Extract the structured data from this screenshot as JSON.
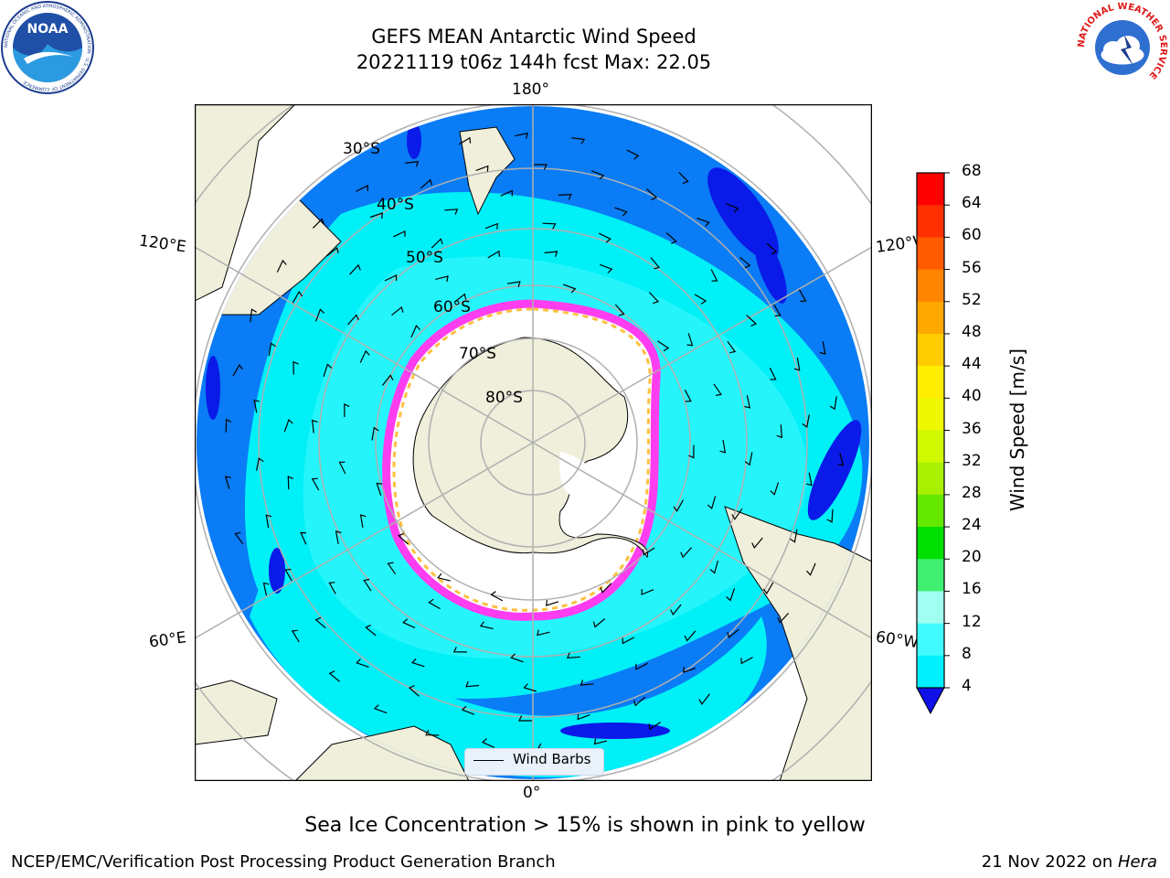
{
  "title": {
    "line1": "GEFS MEAN Antarctic Wind Speed",
    "line2": "20221119 t06z 144h fcst   Max: 22.05"
  },
  "logos": {
    "left": {
      "name": "noaa-logo",
      "text": "NOAA",
      "ring_text": "NATIONAL OCEANIC AND ATMOSPHERIC ADMINISTRATION · U.S. DEPARTMENT OF COMMERCE"
    },
    "right": {
      "name": "nws-logo",
      "ring_text": "NATIONAL WEATHER SERVICE"
    }
  },
  "map": {
    "projection": "south-polar-stereographic",
    "longitude_labels": {
      "top": "180°",
      "bottom": "0°",
      "upper_left": "120°E",
      "upper_right": "120°W",
      "lower_left": "60°E",
      "lower_right": "60°W"
    },
    "latitude_labels": [
      "30°S",
      "40°S",
      "50°S",
      "60°S",
      "70°S",
      "80°S"
    ],
    "colors": {
      "land": "#efefdb",
      "ocean_lt4": "#0a1ae8",
      "ocean_4_8": "#0a7cf5",
      "ocean_8_12": "#00f0f8",
      "ocean_12_16": "#44fafc",
      "sea_ice_edge_pink": "#ff3df0",
      "sea_ice_edge_yellow": "#ffc040",
      "graticule": "#b0b0b0"
    },
    "legend": {
      "label": "Wind Barbs"
    }
  },
  "colorbar": {
    "label": "Wind Speed [m/s]",
    "ticks": [
      "68",
      "64",
      "60",
      "56",
      "52",
      "48",
      "44",
      "40",
      "36",
      "32",
      "28",
      "24",
      "20",
      "16",
      "12",
      "8",
      "4"
    ],
    "colors_top_to_bottom": [
      "#ff0000",
      "#ff3000",
      "#ff5a00",
      "#ff8400",
      "#ffa800",
      "#ffcc00",
      "#ffee00",
      "#f0f800",
      "#d0f800",
      "#a8f000",
      "#64e800",
      "#00e000",
      "#40f070",
      "#a0fff0",
      "#40faff",
      "#00f0ff",
      "#0a7cf5"
    ],
    "extend_color": "#1010e8"
  },
  "footnote": "Sea Ice Concentration > 15% is shown in pink to yellow",
  "credit_left": "NCEP/EMC/Verification Post Processing Product Generation Branch",
  "credit_right_date": "21 Nov 2022 on ",
  "credit_right_machine": "Hera"
}
